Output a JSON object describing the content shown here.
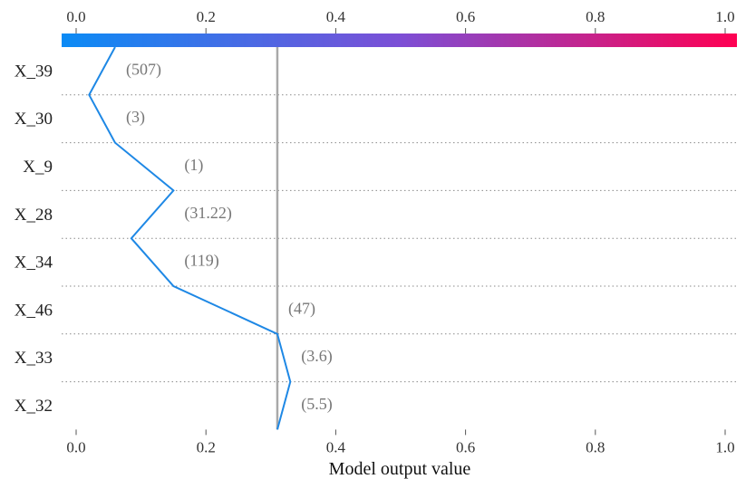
{
  "chart_data": {
    "type": "line",
    "xlabel": "Model output value",
    "xlim": [
      0.0,
      1.0
    ],
    "xticks": [
      "0.0",
      "0.2",
      "0.4",
      "0.6",
      "0.8",
      "1.0"
    ],
    "base_value": 0.31,
    "colorbar": {
      "from": "#0b8bf5",
      "mid": "#7c4fd6",
      "to": "#ff0052"
    },
    "line_color": "#1e88e5",
    "features": [
      {
        "name": "X_39",
        "value": "(507)"
      },
      {
        "name": "X_30",
        "value": "(3)"
      },
      {
        "name": "X_9",
        "value": "(1)"
      },
      {
        "name": "X_28",
        "value": "(31.22)"
      },
      {
        "name": "X_34",
        "value": "(119)"
      },
      {
        "name": "X_46",
        "value": "(47)"
      },
      {
        "name": "X_33",
        "value": "(3.6)"
      },
      {
        "name": "X_32",
        "value": "(5.5)"
      }
    ],
    "path_x": [
      0.06,
      0.02,
      0.06,
      0.15,
      0.085,
      0.15,
      0.31,
      0.33,
      0.31
    ]
  }
}
